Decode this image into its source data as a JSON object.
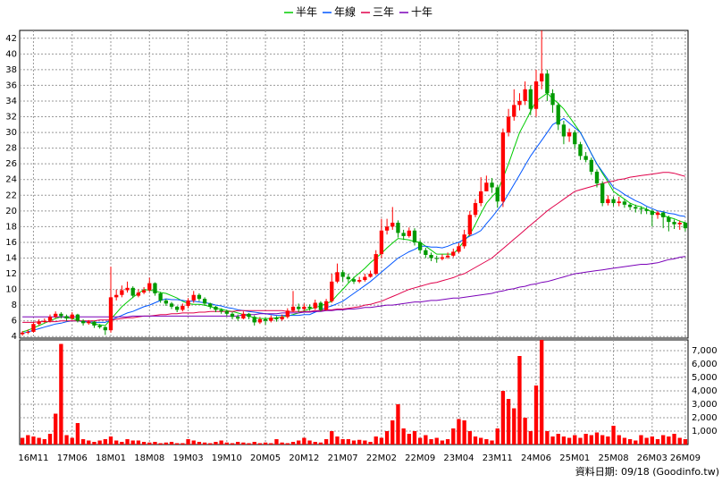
{
  "chart_data": {
    "type": "candlestick",
    "grid": true,
    "up_color": "#ff0000",
    "down_color": "#009900",
    "categories": [
      null,
      null,
      "16M11",
      null,
      null,
      null,
      null,
      null,
      null,
      "17M06",
      null,
      null,
      null,
      null,
      null,
      null,
      "18M01",
      null,
      null,
      null,
      null,
      null,
      null,
      "18M08",
      null,
      null,
      null,
      null,
      null,
      null,
      "19M03",
      null,
      null,
      null,
      null,
      null,
      null,
      "19M10",
      null,
      null,
      null,
      null,
      null,
      null,
      "20M05",
      null,
      null,
      null,
      null,
      null,
      null,
      "20M12",
      null,
      null,
      null,
      null,
      null,
      null,
      "21M07",
      null,
      null,
      null,
      null,
      null,
      null,
      "22M02",
      null,
      null,
      null,
      null,
      null,
      null,
      "22M09",
      null,
      null,
      null,
      null,
      null,
      null,
      "23M04",
      null,
      null,
      null,
      null,
      null,
      null,
      "23M11",
      null,
      null,
      null,
      null,
      null,
      null,
      "24M06",
      null,
      null,
      null,
      null,
      null,
      null,
      "25M01",
      null,
      null,
      null,
      null,
      null,
      null,
      "25M08",
      null,
      null,
      null,
      null,
      null,
      null,
      "26M03",
      null,
      null,
      null,
      null,
      null,
      "26M09"
    ],
    "open": [
      4.3,
      4.5,
      4.6,
      5.6,
      5.9,
      6.0,
      6.5,
      6.9,
      6.6,
      6.3,
      6.8,
      6.0,
      5.7,
      5.9,
      5.4,
      5.2,
      4.8,
      9.0,
      9.3,
      9.9,
      10.2,
      9.2,
      9.6,
      9.9,
      10.8,
      9.5,
      8.6,
      8.2,
      7.8,
      7.4,
      7.9,
      8.6,
      9.3,
      8.8,
      8.2,
      7.8,
      7.4,
      7.2,
      6.9,
      6.5,
      6.3,
      6.9,
      6.5,
      5.8,
      6.2,
      6.0,
      6.4,
      6.2,
      6.5,
      7.3,
      7.8,
      7.5,
      7.8,
      7.6,
      8.3,
      7.4,
      8.5,
      11.0,
      12.2,
      11.6,
      11.3,
      11.0,
      11.2,
      11.6,
      12.0,
      14.5,
      17.5,
      18.0,
      18.5,
      17.2,
      16.8,
      17.5,
      16.0,
      15.0,
      14.4,
      14.0,
      13.9,
      14.1,
      14.3,
      14.8,
      15.5,
      17.0,
      19.5,
      21.0,
      22.5,
      23.6,
      23.0,
      21.2,
      30.0,
      32.0,
      33.5,
      34.0,
      35.5,
      33.0,
      36.5,
      37.5,
      35.0,
      33.5,
      31.0,
      29.5,
      30.0,
      28.5,
      27.0,
      26.5,
      25.0,
      23.5,
      21.0,
      21.5,
      21.0,
      21.2,
      20.8,
      20.5,
      20.3,
      20.2,
      20.0,
      19.5,
      19.8,
      19.2,
      18.6,
      18.3,
      18.5
    ],
    "high": [
      4.7,
      4.9,
      5.8,
      6.2,
      6.3,
      6.8,
      7.2,
      7.1,
      6.8,
      7.1,
      6.9,
      6.2,
      6.1,
      6.0,
      5.6,
      5.3,
      12.9,
      10.0,
      10.5,
      11.0,
      10.4,
      10.0,
      10.3,
      11.5,
      10.9,
      9.7,
      8.8,
      8.4,
      7.9,
      8.2,
      8.9,
      9.8,
      9.5,
      9.0,
      8.3,
      7.9,
      7.6,
      7.4,
      7.1,
      6.8,
      7.2,
      7.0,
      6.7,
      6.5,
      6.4,
      6.7,
      6.6,
      6.8,
      7.6,
      9.8,
      8.2,
      8.2,
      8.1,
      8.7,
      8.5,
      8.8,
      12.0,
      13.3,
      12.5,
      12.0,
      11.6,
      11.6,
      12.0,
      12.4,
      15.0,
      19.0,
      19.0,
      20.5,
      18.8,
      17.6,
      17.9,
      17.8,
      16.3,
      15.3,
      14.7,
      14.3,
      14.5,
      14.7,
      15.2,
      15.9,
      17.6,
      20.0,
      21.5,
      24.3,
      24.5,
      24.2,
      23.3,
      30.5,
      33.0,
      35.5,
      35.0,
      36.5,
      36.0,
      38.0,
      43.0,
      38.0,
      35.5,
      33.8,
      31.5,
      30.5,
      30.3,
      28.8,
      27.5,
      26.8,
      25.3,
      23.8,
      22.0,
      21.8,
      21.8,
      21.5,
      21.0,
      20.8,
      20.6,
      20.5,
      20.2,
      20.0,
      19.9,
      19.4,
      18.9,
      18.8,
      18.6
    ],
    "low": [
      4.1,
      4.3,
      4.5,
      5.4,
      5.7,
      5.8,
      6.3,
      6.3,
      6.0,
      6.1,
      5.8,
      5.4,
      5.5,
      5.1,
      5.0,
      4.2,
      4.5,
      8.6,
      9.0,
      9.6,
      8.9,
      9.0,
      9.4,
      9.7,
      9.2,
      8.3,
      7.9,
      7.5,
      7.1,
      7.2,
      7.6,
      8.3,
      8.5,
      7.9,
      7.5,
      7.1,
      6.9,
      6.6,
      6.2,
      6.0,
      6.2,
      6.2,
      5.4,
      5.6,
      5.5,
      5.8,
      5.9,
      6.0,
      6.3,
      7.1,
      7.1,
      7.3,
      7.3,
      7.4,
      7.2,
      7.3,
      8.3,
      10.8,
      11.0,
      10.9,
      10.7,
      10.8,
      11.0,
      11.5,
      11.8,
      14.0,
      17.0,
      17.6,
      16.6,
      16.3,
      16.6,
      15.6,
      14.6,
      14.0,
      13.6,
      13.4,
      13.7,
      13.9,
      14.1,
      14.6,
      15.2,
      16.8,
      19.2,
      20.6,
      22.5,
      22.3,
      20.4,
      20.5,
      29.5,
      31.5,
      32.8,
      33.5,
      32.2,
      32.0,
      35.5,
      34.0,
      32.5,
      30.3,
      28.5,
      28.8,
      28.0,
      26.5,
      26.2,
      24.6,
      23.0,
      20.6,
      20.7,
      20.6,
      20.6,
      20.4,
      20.1,
      19.8,
      19.6,
      19.6,
      18.0,
      19.0,
      17.8,
      17.4,
      17.7,
      17.6,
      17.4
    ],
    "close": [
      4.5,
      4.6,
      5.6,
      5.9,
      6.0,
      6.5,
      6.9,
      6.6,
      6.3,
      6.8,
      6.0,
      5.7,
      5.9,
      5.4,
      5.2,
      4.8,
      9.0,
      9.3,
      9.9,
      10.2,
      9.2,
      9.6,
      9.9,
      10.8,
      9.5,
      8.6,
      8.2,
      7.8,
      7.4,
      7.9,
      8.6,
      9.3,
      8.8,
      8.2,
      7.8,
      7.4,
      7.2,
      6.9,
      6.5,
      6.3,
      6.9,
      6.5,
      5.8,
      6.2,
      6.0,
      6.4,
      6.2,
      6.5,
      7.3,
      7.8,
      7.5,
      7.8,
      7.6,
      8.3,
      7.4,
      8.5,
      11.0,
      12.2,
      11.6,
      11.3,
      11.0,
      11.2,
      11.6,
      12.0,
      14.5,
      17.5,
      18.0,
      18.5,
      17.2,
      16.8,
      17.5,
      16.0,
      15.0,
      14.4,
      14.0,
      13.9,
      14.1,
      14.3,
      14.8,
      15.5,
      17.0,
      19.5,
      21.0,
      22.5,
      23.6,
      23.0,
      21.2,
      30.0,
      32.0,
      33.5,
      34.0,
      35.5,
      33.0,
      36.5,
      37.5,
      35.0,
      33.5,
      31.0,
      29.5,
      30.0,
      28.5,
      27.0,
      26.5,
      25.0,
      23.5,
      21.0,
      21.5,
      21.0,
      21.2,
      20.8,
      20.5,
      20.3,
      20.2,
      20.0,
      19.5,
      19.8,
      19.2,
      18.6,
      18.3,
      18.5,
      17.8
    ],
    "series": [
      {
        "name": "半年",
        "color": "#00cc00",
        "values": [
          4.6,
          4.8,
          5.1,
          5.4,
          5.7,
          6.0,
          6.3,
          6.5,
          6.4,
          6.3,
          6.1,
          5.9,
          5.8,
          5.6,
          5.5,
          5.4,
          6.2,
          7.0,
          7.8,
          8.4,
          9.0,
          9.5,
          10.0,
          9.9,
          9.8,
          9.6,
          9.5,
          9.2,
          8.9,
          8.5,
          8.2,
          8.1,
          8.1,
          8.0,
          7.8,
          7.6,
          7.5,
          7.3,
          7.2,
          7.0,
          6.8,
          6.6,
          6.4,
          6.3,
          6.3,
          6.3,
          6.4,
          6.5,
          6.6,
          6.8,
          7.0,
          7.3,
          7.5,
          7.7,
          7.9,
          8.2,
          8.5,
          9.3,
          10.0,
          10.8,
          11.5,
          12.1,
          12.7,
          13.4,
          14.0,
          14.6,
          15.3,
          15.9,
          16.5,
          16.4,
          16.3,
          16.1,
          16.0,
          15.5,
          15.0,
          14.5,
          14.5,
          14.5,
          14.5,
          15.3,
          16.2,
          17.0,
          18.3,
          19.7,
          21.0,
          21.8,
          22.5,
          24.2,
          26.0,
          28.0,
          30.0,
          31.3,
          32.7,
          34.0,
          34.5,
          35.0,
          34.3,
          33.7,
          33.0,
          32.0,
          31.0,
          30.0,
          28.7,
          27.3,
          26.0,
          24.8,
          23.7,
          22.5,
          22.0,
          21.5,
          21.0,
          20.7,
          20.5,
          20.2,
          19.9,
          19.7,
          19.4,
          19.2,
          19.0,
          18.7,
          18.5
        ]
      },
      {
        "name": "年線",
        "color": "#0055ff",
        "values": [
          4.4,
          4.6,
          4.8,
          5.0,
          5.2,
          5.4,
          5.6,
          5.7,
          5.9,
          6.0,
          6.0,
          5.9,
          5.9,
          5.8,
          5.8,
          5.8,
          6.1,
          6.4,
          6.7,
          7.0,
          7.2,
          7.5,
          7.8,
          8.0,
          8.3,
          8.6,
          8.8,
          8.7,
          8.7,
          8.6,
          8.5,
          8.5,
          8.4,
          8.3,
          8.2,
          8.0,
          7.9,
          7.7,
          7.6,
          7.4,
          7.3,
          7.2,
          7.1,
          7.0,
          6.9,
          6.8,
          6.7,
          6.7,
          6.7,
          6.7,
          6.7,
          6.8,
          6.8,
          7.1,
          7.4,
          7.7,
          7.9,
          8.2,
          8.5,
          9.0,
          9.5,
          10.0,
          10.5,
          11.0,
          11.6,
          12.2,
          12.8,
          13.4,
          14.0,
          14.4,
          14.8,
          15.1,
          15.5,
          15.5,
          15.4,
          15.4,
          15.3,
          15.5,
          15.8,
          16.0,
          16.4,
          16.8,
          17.1,
          17.5,
          18.4,
          19.2,
          20.1,
          21.0,
          22.2,
          23.4,
          24.6,
          25.8,
          27.0,
          28.0,
          29.0,
          30.0,
          31.0,
          31.4,
          31.8,
          31.2,
          30.6,
          30.0,
          28.7,
          27.3,
          26.0,
          25.0,
          24.0,
          23.0,
          22.6,
          22.1,
          21.7,
          21.3,
          21.0,
          20.6,
          20.3,
          20.0,
          19.9,
          19.7,
          19.6,
          19.4,
          19.3
        ]
      },
      {
        "name": "三年",
        "color": "#e0004a",
        "values": [
          5.8,
          5.8,
          5.8,
          5.9,
          5.9,
          5.9,
          5.9,
          6.0,
          6.0,
          6.0,
          6.0,
          6.0,
          6.0,
          6.0,
          6.1,
          6.1,
          6.1,
          6.2,
          6.3,
          6.4,
          6.4,
          6.5,
          6.6,
          6.6,
          6.7,
          6.8,
          6.8,
          6.9,
          6.9,
          7.0,
          7.0,
          7.0,
          7.1,
          7.1,
          7.2,
          7.2,
          7.2,
          7.2,
          7.2,
          7.3,
          7.3,
          7.3,
          7.3,
          7.3,
          7.3,
          7.3,
          7.3,
          7.3,
          7.2,
          7.2,
          7.2,
          7.2,
          7.2,
          7.3,
          7.3,
          7.4,
          7.4,
          7.5,
          7.5,
          7.6,
          7.7,
          7.8,
          8.0,
          8.1,
          8.3,
          8.5,
          8.8,
          9.1,
          9.4,
          9.7,
          10.0,
          10.2,
          10.4,
          10.6,
          10.8,
          10.9,
          11.1,
          11.3,
          11.5,
          11.8,
          12.0,
          12.4,
          12.8,
          13.2,
          13.6,
          14.0,
          14.6,
          15.2,
          15.8,
          16.4,
          17.0,
          17.6,
          18.2,
          18.8,
          19.4,
          20.0,
          20.5,
          21.0,
          21.5,
          22.0,
          22.5,
          22.7,
          22.9,
          23.1,
          23.3,
          23.5,
          23.7,
          23.8,
          24.0,
          24.1,
          24.3,
          24.4,
          24.5,
          24.6,
          24.7,
          24.8,
          24.9,
          24.9,
          24.8,
          24.6,
          24.4
        ]
      },
      {
        "name": "十年",
        "color": "#7a00b8",
        "values": [
          6.5,
          6.5,
          6.5,
          6.5,
          6.5,
          6.5,
          6.5,
          6.5,
          6.5,
          6.5,
          6.5,
          6.5,
          6.5,
          6.5,
          6.5,
          6.5,
          6.5,
          6.5,
          6.5,
          6.5,
          6.6,
          6.6,
          6.6,
          6.6,
          6.6,
          6.6,
          6.6,
          6.6,
          6.6,
          6.6,
          6.6,
          6.6,
          6.6,
          6.6,
          6.6,
          6.6,
          6.6,
          6.6,
          6.6,
          6.6,
          6.8,
          6.8,
          6.8,
          6.9,
          6.9,
          6.9,
          6.9,
          7.0,
          7.0,
          7.0,
          7.0,
          7.1,
          7.1,
          7.2,
          7.2,
          7.3,
          7.3,
          7.4,
          7.4,
          7.5,
          7.5,
          7.6,
          7.7,
          7.7,
          7.8,
          7.9,
          8.0,
          8.0,
          8.1,
          8.2,
          8.3,
          8.4,
          8.4,
          8.5,
          8.6,
          8.6,
          8.7,
          8.8,
          8.9,
          8.9,
          9.0,
          9.1,
          9.2,
          9.3,
          9.4,
          9.5,
          9.7,
          9.8,
          10.0,
          10.1,
          10.3,
          10.4,
          10.6,
          10.7,
          10.9,
          11.0,
          11.2,
          11.4,
          11.6,
          11.8,
          12.0,
          12.1,
          12.2,
          12.3,
          12.4,
          12.5,
          12.6,
          12.7,
          12.8,
          12.9,
          13.0,
          13.1,
          13.2,
          13.2,
          13.3,
          13.4,
          13.6,
          13.8,
          13.9,
          14.1,
          14.2
        ]
      }
    ],
    "ylim": [
      3.8,
      43
    ],
    "yticks": [
      4,
      6,
      8,
      10,
      12,
      14,
      16,
      18,
      20,
      22,
      24,
      26,
      28,
      30,
      32,
      34,
      36,
      38,
      40,
      42
    ],
    "volume": {
      "color": "#ff0000",
      "ylim": [
        0,
        7800
      ],
      "yticks": [
        {
          "value": 1000,
          "label": "1,000"
        },
        {
          "value": 2000,
          "label": "2,000"
        },
        {
          "value": 3000,
          "label": "3,000"
        },
        {
          "value": 4000,
          "label": "4,000"
        },
        {
          "value": 5000,
          "label": "5,000"
        },
        {
          "value": 6000,
          "label": "6,000"
        },
        {
          "value": 7000,
          "label": "7,000"
        }
      ],
      "values": [
        500,
        700,
        600,
        500,
        400,
        800,
        2300,
        7500,
        700,
        500,
        1600,
        400,
        300,
        200,
        300,
        400,
        600,
        300,
        200,
        400,
        300,
        300,
        200,
        150,
        200,
        100,
        150,
        200,
        100,
        100,
        400,
        300,
        200,
        150,
        100,
        200,
        300,
        150,
        100,
        200,
        150,
        100,
        200,
        100,
        150,
        100,
        400,
        150,
        100,
        200,
        300,
        500,
        300,
        200,
        150,
        400,
        1000,
        600,
        400,
        400,
        300,
        350,
        300,
        200,
        600,
        500,
        1000,
        1800,
        3000,
        1200,
        800,
        1000,
        500,
        700,
        400,
        500,
        300,
        400,
        1200,
        1900,
        1800,
        1000,
        600,
        500,
        400,
        300,
        1200,
        4000,
        3400,
        2700,
        6600,
        2000,
        1000,
        4400,
        7800,
        1000,
        600,
        800,
        600,
        500,
        700,
        500,
        800,
        700,
        900,
        700,
        600,
        1400,
        700,
        500,
        400,
        300,
        700,
        500,
        600,
        400,
        700,
        600,
        800,
        500,
        400
      ]
    },
    "note": "資料日期: 09/18  (Goodinfo.tw)"
  }
}
